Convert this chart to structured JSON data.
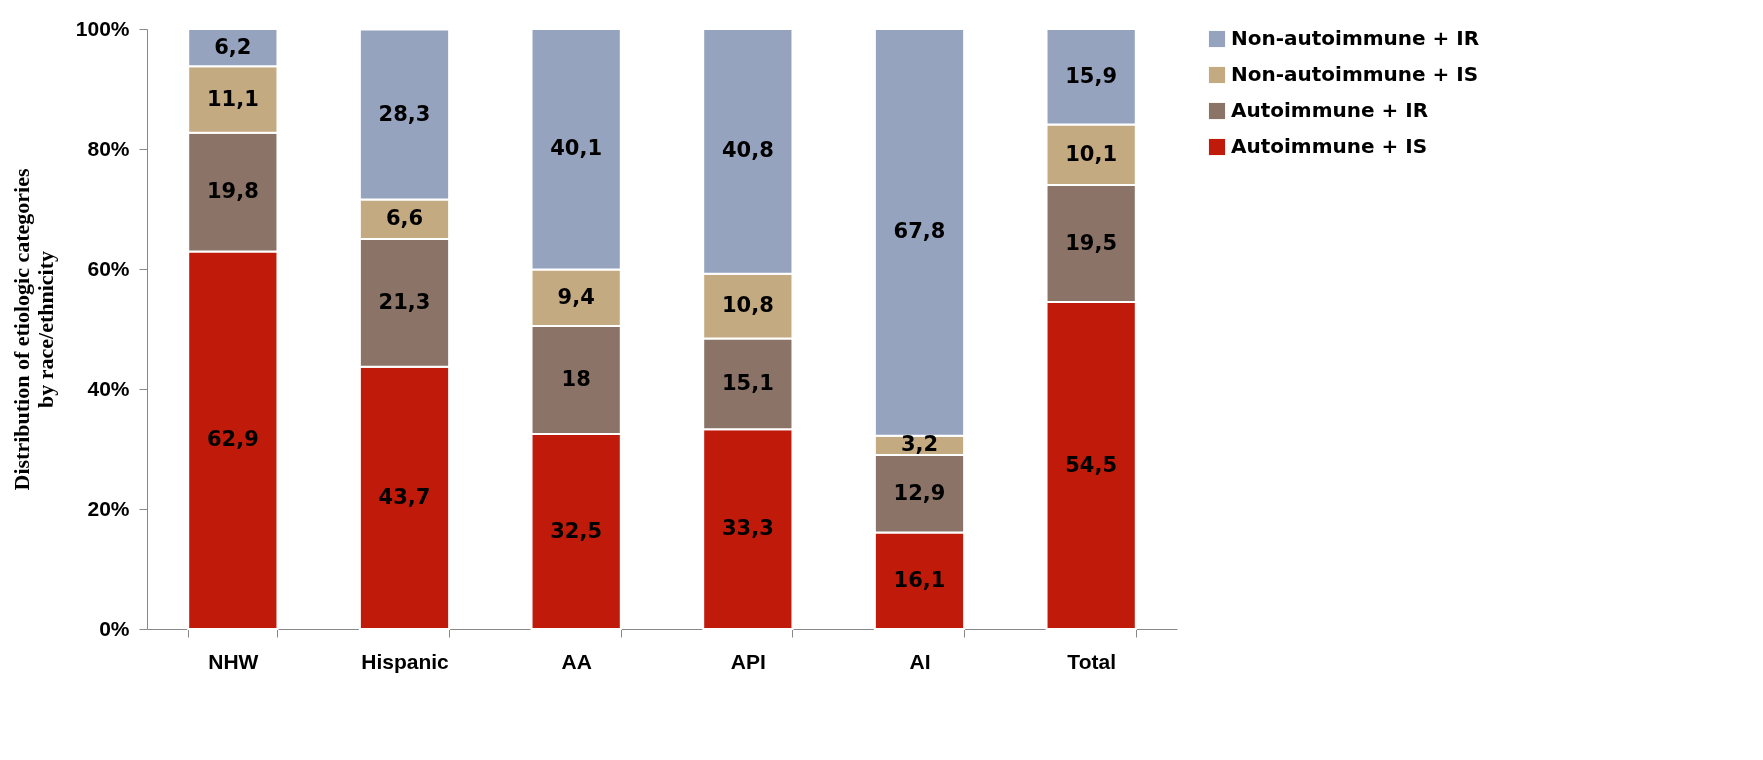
{
  "chart_data": {
    "type": "bar",
    "stacked": true,
    "ylabel": "Distribution of etiologic categories\nby race/ethnicity",
    "categories": [
      "NHW",
      "Hispanic",
      "AA",
      "API",
      "AI",
      "Total"
    ],
    "series": [
      {
        "name": "Autoimmune + IS",
        "color": "#c01a0b",
        "values": [
          62.9,
          43.7,
          32.5,
          33.3,
          16.1,
          54.5
        ],
        "value_labels": [
          "62,9",
          "43,7",
          "32,5",
          "33,3",
          "16,1",
          "54,5"
        ]
      },
      {
        "name": "Autoimmune + IR",
        "color": "#8b7367",
        "values": [
          19.8,
          21.3,
          18,
          15.1,
          12.9,
          19.5
        ],
        "value_labels": [
          "19,8",
          "21,3",
          "18",
          "15,1",
          "12,9",
          "19,5"
        ]
      },
      {
        "name": "Non-autoimmune + IS",
        "color": "#c4aa80",
        "values": [
          11.1,
          6.6,
          9.4,
          10.8,
          3.2,
          10.1
        ],
        "value_labels": [
          "11,1",
          "6,6",
          "9,4",
          "10,8",
          "3,2",
          "10,1"
        ]
      },
      {
        "name": "Non-autoimmune + IR",
        "color": "#95a3bf",
        "values": [
          6.2,
          28.3,
          40.1,
          40.8,
          67.8,
          15.9
        ],
        "value_labels": [
          "6,2",
          "28,3",
          "40,1",
          "40,8",
          "67,8",
          "15,9"
        ]
      }
    ],
    "ylim": [
      0,
      100
    ],
    "yticks": [
      {
        "value": 0,
        "label": "0%"
      },
      {
        "value": 20,
        "label": "20%"
      },
      {
        "value": 40,
        "label": "40%"
      },
      {
        "value": 60,
        "label": "60%"
      },
      {
        "value": 80,
        "label": "80%"
      },
      {
        "value": 100,
        "label": "100%"
      }
    ],
    "grid": false,
    "legend": "right"
  }
}
